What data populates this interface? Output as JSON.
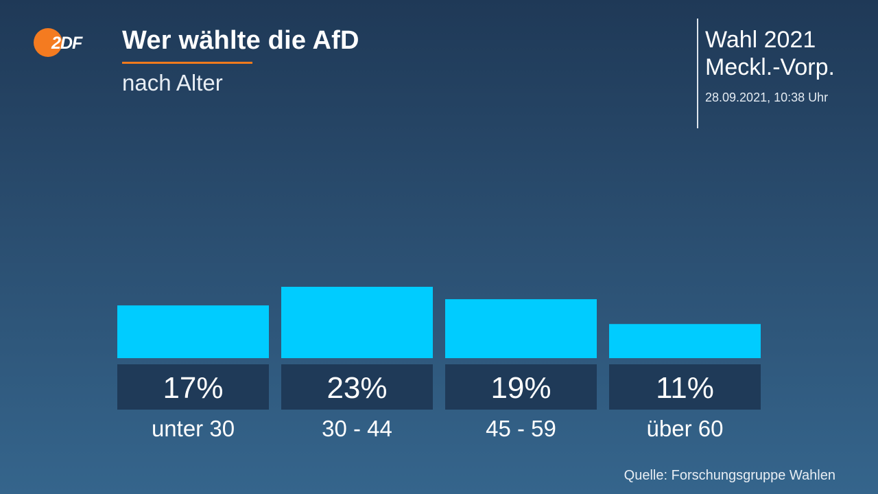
{
  "header": {
    "title": "Wer wählte die AfD",
    "subtitle": "nach Alter",
    "election_line1": "Wahl 2021",
    "election_line2": "Meckl.-Vorp.",
    "timestamp": "28.09.2021, 10:38 Uhr"
  },
  "logo": {
    "text": "ZDF",
    "icon": "zdf-logo-icon"
  },
  "source": "Quelle: Forschungsgruppe Wahlen",
  "colors": {
    "bar": "#00ccff",
    "label_box": "#1f3a58",
    "accent": "#f07a1c",
    "logo": "#f47b20"
  },
  "chart_data": {
    "type": "bar",
    "title": "Wer wählte die AfD",
    "subtitle": "nach Alter",
    "categories": [
      "unter 30",
      "30 - 44",
      "45 - 59",
      "über 60"
    ],
    "values": [
      17,
      23,
      19,
      11
    ],
    "value_labels": [
      "17%",
      "23%",
      "19%",
      "11%"
    ],
    "unit": "%",
    "ylim": [
      0,
      23
    ],
    "grid": false
  }
}
